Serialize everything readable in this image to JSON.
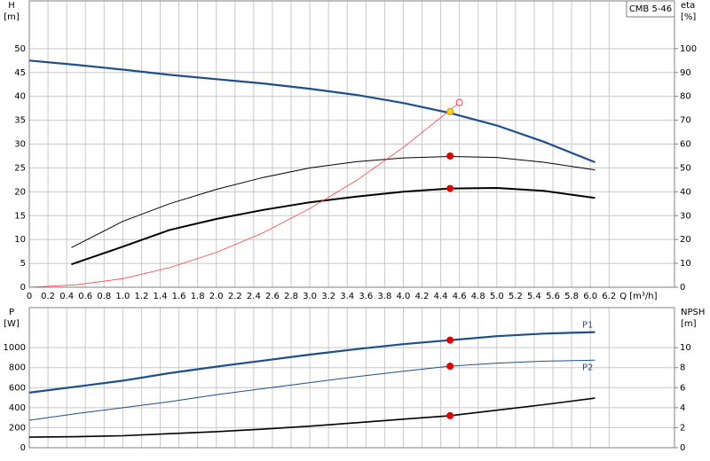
{
  "chart_data": [
    {
      "type": "line",
      "title": "CMB 5-46",
      "x_label": "Q [m³/h]",
      "y_label": "H",
      "y_unit": "[m]",
      "y2_label": "eta",
      "y2_unit": "[%]",
      "xlim": [
        0,
        6.9
      ],
      "xticks": [
        0,
        0.2,
        0.4,
        0.6,
        0.8,
        {
          "value": 1,
          "label": "1.0"
        },
        1.2,
        1.4,
        1.6,
        1.8,
        {
          "value": 2,
          "label": "2.0"
        },
        2.2,
        2.4,
        2.6,
        2.8,
        {
          "value": 3,
          "label": "3.0"
        },
        3.2,
        3.4,
        3.6,
        3.8,
        {
          "value": 4,
          "label": "4.0"
        },
        4.2,
        4.4,
        4.6,
        4.8,
        {
          "value": 5,
          "label": "5.0"
        },
        5.2,
        5.4,
        5.6,
        5.8,
        {
          "value": 6,
          "label": "6.0"
        },
        6.2
      ],
      "ylim": [
        0,
        60
      ],
      "yticks": [
        0,
        5,
        10,
        15,
        20,
        25,
        30,
        35,
        40,
        45,
        50
      ],
      "y2lim": [
        0,
        120
      ],
      "y2ticks": [
        0,
        10,
        20,
        30,
        40,
        50,
        60,
        70,
        80,
        90,
        100
      ],
      "grid": true,
      "series": [
        {
          "color": "#1f4e8c",
          "width": 2.2,
          "x": [
            0,
            0.5,
            1,
            1.5,
            2,
            2.5,
            3,
            3.5,
            4,
            4.5,
            5,
            5.5,
            6.05
          ],
          "values": [
            47.5,
            46.6,
            45.6,
            44.5,
            43.6,
            42.7,
            41.6,
            40.3,
            38.6,
            36.5,
            33.9,
            30.5,
            26.2
          ]
        },
        {
          "color": "#000000",
          "width": 1,
          "axis": "y2",
          "x": [
            0.45,
            1,
            1.5,
            2,
            2.5,
            3,
            3.5,
            4,
            4.5,
            5,
            5.5,
            6.05
          ],
          "values": [
            16.6,
            27.6,
            35,
            41,
            46,
            50,
            52.6,
            54.2,
            54.8,
            54.4,
            52.4,
            49.2
          ]
        },
        {
          "color": "#000000",
          "width": 2,
          "axis": "y2",
          "x": [
            0.45,
            1,
            1.5,
            2,
            2.5,
            3,
            3.5,
            4,
            4.5,
            5,
            5.5,
            6.05
          ],
          "values": [
            9.6,
            17,
            24,
            28.6,
            32.4,
            35.6,
            38,
            40,
            41.4,
            41.6,
            40.4,
            37.4
          ]
        },
        {
          "color": "#ff4040",
          "width": 0.8,
          "x": [
            0,
            0.5,
            1,
            1.5,
            2,
            2.5,
            3,
            3.5,
            4,
            4.6
          ],
          "values": [
            0,
            0.5,
            1.8,
            4.1,
            7.3,
            11.4,
            16.5,
            22.4,
            29.3,
            38.7
          ]
        }
      ],
      "markers": [
        {
          "x": 4.5,
          "y": 36.8,
          "color": "#ffd21f",
          "stroke": "#e09000",
          "filled": true
        },
        {
          "x": 4.6,
          "y": 38.7,
          "color": "#ff4040",
          "stroke": "#ff4040",
          "filled": false
        },
        {
          "x": 4.5,
          "y": 55,
          "axis": "y2",
          "color": "#e00000",
          "stroke": "#e00000",
          "filled": true
        },
        {
          "x": 4.5,
          "y": 41.4,
          "axis": "y2",
          "color": "#e00000",
          "stroke": "#e00000",
          "filled": true
        }
      ]
    },
    {
      "type": "line",
      "y_label": "P",
      "y_unit": "[W]",
      "y2_label": "NPSH",
      "y2_unit": "[m]",
      "xlim": [
        0,
        6.9
      ],
      "xticks": [
        0,
        0.2,
        0.4,
        0.6,
        0.8,
        1,
        1.2,
        1.4,
        1.6,
        1.8,
        2,
        2.2,
        2.4,
        2.6,
        2.8,
        3,
        3.2,
        3.4,
        3.6,
        3.8,
        4,
        4.2,
        4.4,
        4.6,
        4.8,
        5,
        5.2,
        5.4,
        5.6,
        5.8,
        6,
        6.2
      ],
      "ylim": [
        0,
        1400
      ],
      "yticks": [
        0,
        200,
        400,
        600,
        800,
        1000
      ],
      "y2lim": [
        0,
        14
      ],
      "y2ticks": [
        0,
        2,
        4,
        6,
        8,
        10
      ],
      "grid": true,
      "series": [
        {
          "name": "P1",
          "color": "#1f4e8c",
          "width": 2.2,
          "x": [
            0,
            0.5,
            1,
            1.5,
            2,
            2.5,
            3,
            3.5,
            4,
            4.5,
            5,
            5.5,
            6.05
          ],
          "values": [
            550,
            610,
            670,
            745,
            810,
            870,
            930,
            985,
            1035,
            1075,
            1115,
            1140,
            1155
          ]
        },
        {
          "name": "P2",
          "color": "#1f4e8c",
          "width": 1,
          "x": [
            0,
            0.5,
            1,
            1.5,
            2,
            2.5,
            3,
            3.5,
            4,
            4.5,
            5,
            5.5,
            6.05
          ],
          "values": [
            275,
            340,
            400,
            460,
            530,
            590,
            650,
            710,
            765,
            815,
            845,
            865,
            875
          ]
        },
        {
          "color": "#000000",
          "width": 1.6,
          "axis": "y2",
          "x": [
            0,
            0.5,
            1,
            1.5,
            2,
            2.5,
            3,
            3.5,
            4,
            4.5,
            5,
            5.5,
            6.05
          ],
          "values": [
            1.05,
            1.1,
            1.2,
            1.4,
            1.6,
            1.85,
            2.15,
            2.5,
            2.85,
            3.2,
            3.75,
            4.3,
            4.95
          ]
        }
      ],
      "markers": [
        {
          "x": 4.5,
          "y": 1075,
          "color": "#e00000",
          "stroke": "#e00000",
          "filled": true
        },
        {
          "x": 4.5,
          "y": 815,
          "color": "#e00000",
          "stroke": "#e00000",
          "filled": true
        },
        {
          "x": 4.5,
          "y": 3.2,
          "axis": "y2",
          "color": "#e00000",
          "stroke": "#e00000",
          "filled": true
        }
      ]
    }
  ]
}
